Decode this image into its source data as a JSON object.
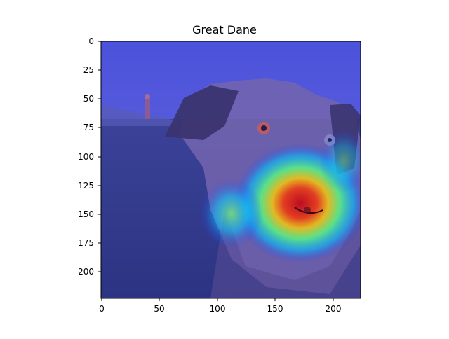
{
  "figure": {
    "title": "Great Dane"
  },
  "axes": {
    "x_ticks": [
      "0",
      "50",
      "100",
      "150",
      "200"
    ],
    "y_ticks": [
      "0",
      "25",
      "50",
      "75",
      "100",
      "125",
      "150",
      "175",
      "200"
    ]
  },
  "image": {
    "subject": "great dane dog on grass with heatmap overlay",
    "colormap": "jet"
  }
}
